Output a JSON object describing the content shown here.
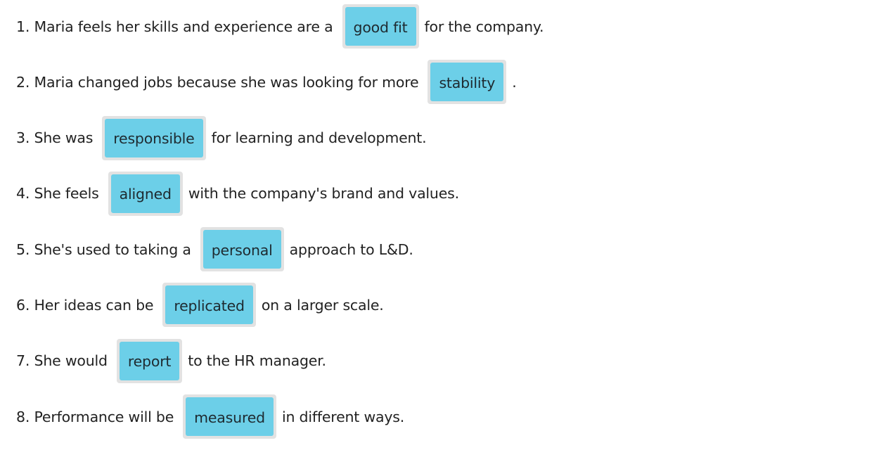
{
  "exercise": {
    "sentences": [
      {
        "number": "1.",
        "before": "Maria feels her skills and experience are a",
        "answer": "good fit",
        "after": "for the company."
      },
      {
        "number": "2.",
        "before": "Maria changed jobs because she was looking for more",
        "answer": "stability",
        "after": "."
      },
      {
        "number": "3.",
        "before": "She was",
        "answer": "responsible",
        "after": "for learning and development."
      },
      {
        "number": "4.",
        "before": "She feels",
        "answer": "aligned",
        "after": "with the company's brand and values."
      },
      {
        "number": "5.",
        "before": "She's used to taking a",
        "answer": "personal",
        "after": "approach to L&D."
      },
      {
        "number": "6.",
        "before": "Her ideas can be",
        "answer": "replicated",
        "after": "on a larger scale."
      },
      {
        "number": "7.",
        "before": "She would",
        "answer": "report",
        "after": "to the HR manager."
      },
      {
        "number": "8.",
        "before": "Performance will be",
        "answer": "measured",
        "after": "in different ways."
      }
    ]
  },
  "colors": {
    "chip": "#6ccfe8",
    "drop_zone": "#e2e2e2",
    "text": "#222222"
  }
}
